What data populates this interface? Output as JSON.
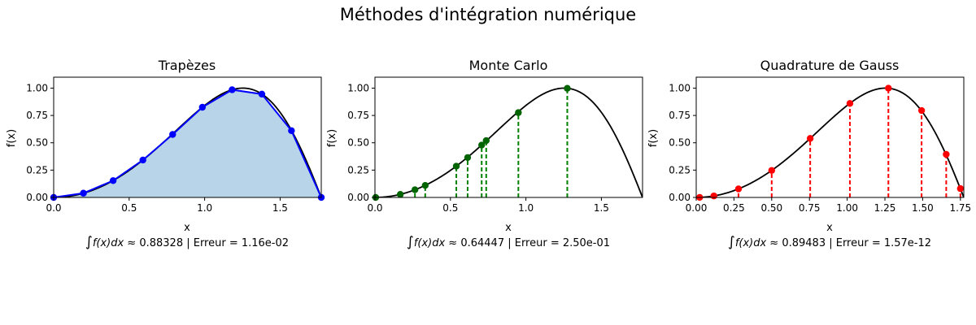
{
  "figure_title": "Méthodes d'intégration numérique",
  "chart_data": [
    {
      "type": "line",
      "method": "trapezes",
      "title": "Trapèzes",
      "xlabel": "x",
      "ylabel": "f(x)",
      "xlim": [
        0,
        1.7725
      ],
      "ylim": [
        0,
        1.1
      ],
      "xticks": [
        0.0,
        0.5,
        1.0,
        1.5
      ],
      "xtick_labels": [
        "0.0",
        "0.5",
        "1.0",
        "1.5"
      ],
      "yticks": [
        0.0,
        0.25,
        0.5,
        0.75,
        1.0
      ],
      "ytick_labels": [
        "0.00",
        "0.25",
        "0.50",
        "0.75",
        "1.00"
      ],
      "function": "sin(x^2)",
      "points_x": [
        0.0,
        0.197,
        0.394,
        0.591,
        0.788,
        0.985,
        1.182,
        1.379,
        1.575,
        1.7725
      ],
      "points_y": [
        0.0,
        0.039,
        0.154,
        0.342,
        0.576,
        0.825,
        0.985,
        0.945,
        0.611,
        0.0
      ],
      "marker_color": "#0000ff",
      "fill_color": "#b8d4e8",
      "caption_prefix": "∫",
      "caption_math": "f(x)dx",
      "caption_rest": " ≈ 0.88328 | Erreur = 1.16e-02"
    },
    {
      "type": "line",
      "method": "montecarlo",
      "title": "Monte Carlo",
      "xlabel": "x",
      "ylabel": "f(x)",
      "xlim": [
        0,
        1.7725
      ],
      "ylim": [
        0,
        1.1
      ],
      "xticks": [
        0.0,
        0.5,
        1.0,
        1.5
      ],
      "xtick_labels": [
        "0.0",
        "0.5",
        "1.0",
        "1.5"
      ],
      "yticks": [
        0.0,
        0.25,
        0.5,
        0.75,
        1.0
      ],
      "ytick_labels": [
        "0.00",
        "0.25",
        "0.50",
        "0.75",
        "1.00"
      ],
      "function": "sin(x^2)",
      "points_x": [
        0.005,
        0.168,
        0.265,
        0.333,
        0.539,
        0.614,
        0.707,
        0.737,
        0.95,
        1.274
      ],
      "points_y": [
        0.0,
        0.028,
        0.07,
        0.11,
        0.286,
        0.365,
        0.479,
        0.52,
        0.776,
        0.998
      ],
      "marker_color": "#006400",
      "line_color": "#008000",
      "caption_prefix": "∫",
      "caption_math": "f(x)dx",
      "caption_rest": " ≈ 0.64447 | Erreur = 2.50e-01"
    },
    {
      "type": "line",
      "method": "gauss",
      "title": "Quadrature de Gauss",
      "xlabel": "x",
      "ylabel": "f(x)",
      "xlim": [
        0,
        1.7725
      ],
      "ylim": [
        0,
        1.1
      ],
      "xticks": [
        0.0,
        0.25,
        0.5,
        0.75,
        1.0,
        1.25,
        1.5,
        1.75
      ],
      "xtick_labels": [
        "0.00",
        "0.25",
        "0.50",
        "0.75",
        "1.00",
        "1.25",
        "1.50",
        "1.75"
      ],
      "yticks": [
        0.0,
        0.25,
        0.5,
        0.75,
        1.0
      ],
      "ytick_labels": [
        "0.00",
        "0.25",
        "0.50",
        "0.75",
        "1.00"
      ],
      "function": "sin(x^2)",
      "points_x": [
        0.023,
        0.117,
        0.28,
        0.5,
        0.755,
        1.018,
        1.273,
        1.493,
        1.656,
        1.75
      ],
      "points_y": [
        0.0005,
        0.0137,
        0.078,
        0.247,
        0.54,
        0.86,
        0.999,
        0.795,
        0.394,
        0.081
      ],
      "marker_color": "#ff0000",
      "line_color": "#ff0000",
      "caption_prefix": "∫",
      "caption_math": "f(x)dx",
      "caption_rest": " ≈ 0.89483 | Erreur = 1.57e-12"
    }
  ]
}
